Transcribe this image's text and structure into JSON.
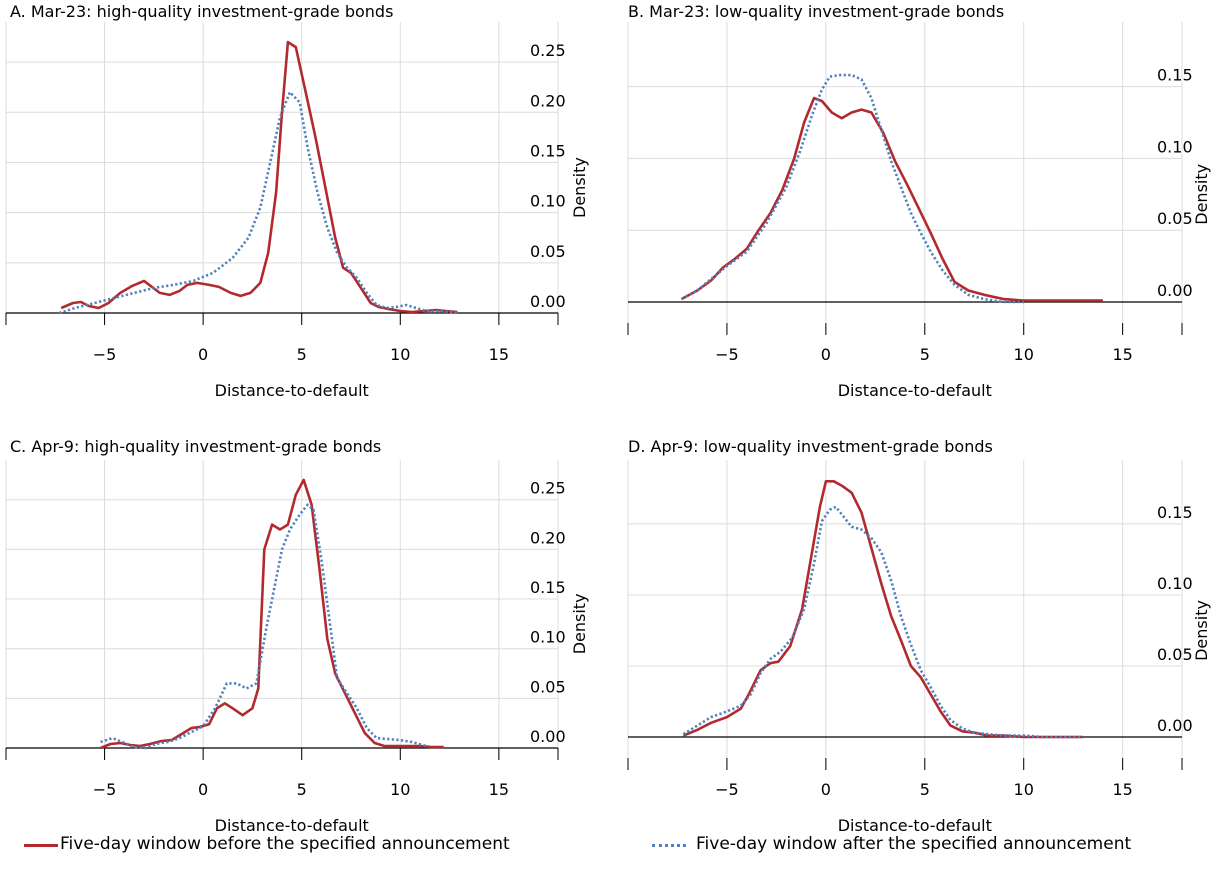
{
  "chart_data": [
    {
      "type": "line",
      "title": "A. Mar-23: high-quality investment-grade bonds",
      "xlabel": "Distance-to-default",
      "ylabel": "Density",
      "xlim": [
        -10,
        18
      ],
      "ylim": [
        -0.015,
        0.29
      ],
      "xticks": [
        -5,
        0,
        5,
        10,
        15
      ],
      "xtick_labels": [
        "−5",
        "0",
        "5",
        "10",
        "15"
      ],
      "yticks": [
        0,
        0.05,
        0.1,
        0.15,
        0.2,
        0.25
      ],
      "ytick_labels": [
        "0.00",
        "0.05",
        "0.10",
        "0.15",
        "0.20",
        "0.25"
      ],
      "grid": true,
      "series": [
        {
          "style": "solid",
          "color": "#b22a2e",
          "x": [
            -7.2,
            -6.6,
            -6.2,
            -5.8,
            -5.3,
            -4.8,
            -4.2,
            -3.6,
            -3.0,
            -2.6,
            -2.2,
            -1.7,
            -1.2,
            -0.8,
            -0.3,
            0.3,
            0.8,
            1.4,
            1.9,
            2.4,
            2.9,
            3.3,
            3.7,
            4.0,
            4.3,
            4.7,
            5.2,
            5.7,
            6.2,
            6.7,
            7.1,
            7.5,
            8.0,
            8.5,
            8.9,
            9.4,
            10.0,
            10.6,
            11.2,
            11.8,
            12.3,
            12.9
          ],
          "y": [
            0.005,
            0.01,
            0.011,
            0.007,
            0.005,
            0.01,
            0.02,
            0.027,
            0.032,
            0.026,
            0.02,
            0.018,
            0.022,
            0.028,
            0.03,
            0.028,
            0.026,
            0.02,
            0.017,
            0.02,
            0.03,
            0.06,
            0.12,
            0.2,
            0.27,
            0.265,
            0.22,
            0.175,
            0.125,
            0.075,
            0.045,
            0.04,
            0.025,
            0.01,
            0.006,
            0.004,
            0.002,
            0.001,
            0.002,
            0.003,
            0.002,
            0.001
          ]
        },
        {
          "style": "dotted",
          "color": "#4e81bd",
          "x": [
            -7.3,
            -6.5,
            -5.5,
            -4.5,
            -3.5,
            -2.5,
            -1.5,
            -0.5,
            0.5,
            1.5,
            2.3,
            2.9,
            3.4,
            3.9,
            4.4,
            4.9,
            5.3,
            5.8,
            6.3,
            6.8,
            7.3,
            7.8,
            8.3,
            8.8,
            9.3,
            9.8,
            10.3,
            10.8,
            11.3,
            11.9,
            12.5,
            13.0
          ],
          "y": [
            0.0,
            0.005,
            0.01,
            0.015,
            0.02,
            0.025,
            0.028,
            0.032,
            0.04,
            0.055,
            0.075,
            0.105,
            0.15,
            0.195,
            0.22,
            0.21,
            0.165,
            0.12,
            0.085,
            0.06,
            0.045,
            0.035,
            0.02,
            0.008,
            0.005,
            0.006,
            0.008,
            0.005,
            0.002,
            0.002,
            0.001,
            0.0
          ]
        }
      ]
    },
    {
      "type": "line",
      "title": "B. Mar-23: low-quality investment-grade bonds",
      "xlabel": "Distance-to-default",
      "ylabel": "Density",
      "xlim": [
        -10,
        18
      ],
      "ylim": [
        -0.015,
        0.195
      ],
      "xticks": [
        -5,
        0,
        5,
        10,
        15
      ],
      "xtick_labels": [
        "−5",
        "0",
        "5",
        "10",
        "15"
      ],
      "yticks": [
        0,
        0.05,
        0.1,
        0.15
      ],
      "ytick_labels": [
        "0.00",
        "0.05",
        "0.10",
        "0.15"
      ],
      "grid": true,
      "series": [
        {
          "style": "solid",
          "color": "#b22a2e",
          "x": [
            -7.3,
            -6.5,
            -5.8,
            -5.2,
            -4.6,
            -4.0,
            -3.4,
            -2.8,
            -2.2,
            -1.6,
            -1.1,
            -0.6,
            -0.2,
            0.3,
            0.8,
            1.3,
            1.8,
            2.3,
            2.9,
            3.5,
            4.1,
            4.7,
            5.3,
            5.9,
            6.5,
            7.2,
            8.0,
            9.0,
            10.0,
            11.0,
            12.0,
            13.0,
            14.0
          ],
          "y": [
            0.002,
            0.008,
            0.015,
            0.024,
            0.03,
            0.037,
            0.05,
            0.062,
            0.078,
            0.1,
            0.125,
            0.142,
            0.14,
            0.132,
            0.128,
            0.132,
            0.134,
            0.132,
            0.118,
            0.098,
            0.082,
            0.065,
            0.048,
            0.03,
            0.014,
            0.008,
            0.005,
            0.002,
            0.001,
            0.001,
            0.001,
            0.001,
            0.001
          ]
        },
        {
          "style": "dotted",
          "color": "#4e81bd",
          "x": [
            -7.3,
            -6.5,
            -5.8,
            -5.0,
            -4.0,
            -3.0,
            -2.0,
            -1.3,
            -0.7,
            -0.2,
            0.2,
            0.7,
            1.3,
            1.8,
            2.3,
            2.8,
            3.3,
            3.8,
            4.3,
            4.8,
            5.3,
            5.9,
            6.5,
            7.2,
            8.0,
            9.0,
            10.0
          ],
          "y": [
            0.002,
            0.008,
            0.016,
            0.025,
            0.035,
            0.055,
            0.08,
            0.105,
            0.13,
            0.148,
            0.157,
            0.158,
            0.158,
            0.155,
            0.142,
            0.12,
            0.098,
            0.08,
            0.062,
            0.048,
            0.035,
            0.022,
            0.012,
            0.005,
            0.002,
            0.0,
            0.0
          ]
        }
      ]
    },
    {
      "type": "line",
      "title": "C. Apr-9: high-quality investment-grade bonds",
      "xlabel": "Distance-to-default",
      "ylabel": "Density",
      "xlim": [
        -10,
        18
      ],
      "ylim": [
        -0.015,
        0.29
      ],
      "xticks": [
        -5,
        0,
        5,
        10,
        15
      ],
      "xtick_labels": [
        "−5",
        "0",
        "5",
        "10",
        "15"
      ],
      "yticks": [
        0,
        0.05,
        0.1,
        0.15,
        0.2,
        0.25
      ],
      "ytick_labels": [
        "0.00",
        "0.05",
        "0.10",
        "0.15",
        "0.20",
        "0.25"
      ],
      "grid": true,
      "series": [
        {
          "style": "solid",
          "color": "#b22a2e",
          "x": [
            -5.2,
            -4.7,
            -4.2,
            -3.7,
            -3.2,
            -2.7,
            -2.1,
            -1.6,
            -1.1,
            -0.6,
            -0.2,
            0.3,
            0.7,
            1.1,
            1.5,
            2.0,
            2.5,
            2.8,
            3.1,
            3.5,
            3.9,
            4.3,
            4.7,
            5.1,
            5.5,
            5.9,
            6.3,
            6.7,
            7.2,
            7.7,
            8.2,
            8.7,
            9.2,
            9.8,
            10.4,
            11.0,
            11.6,
            12.2
          ],
          "y": [
            0.0,
            0.004,
            0.005,
            0.003,
            0.002,
            0.004,
            0.007,
            0.008,
            0.014,
            0.02,
            0.021,
            0.024,
            0.04,
            0.045,
            0.04,
            0.033,
            0.04,
            0.06,
            0.2,
            0.225,
            0.22,
            0.225,
            0.255,
            0.27,
            0.245,
            0.18,
            0.11,
            0.075,
            0.055,
            0.035,
            0.015,
            0.005,
            0.002,
            0.002,
            0.002,
            0.002,
            0.001,
            0.001
          ]
        },
        {
          "style": "dotted",
          "color": "#4e81bd",
          "x": [
            -5.2,
            -4.6,
            -4.1,
            -3.5,
            -2.9,
            -2.4,
            -1.8,
            -1.2,
            -0.6,
            0.0,
            0.6,
            1.2,
            1.7,
            2.2,
            2.7,
            3.2,
            3.6,
            4.0,
            4.4,
            4.9,
            5.3,
            5.6,
            6.0,
            6.4,
            6.8,
            7.3,
            7.8,
            8.3,
            8.8,
            9.4,
            10.0,
            10.6,
            11.3
          ],
          "y": [
            0.006,
            0.01,
            0.006,
            0.001,
            0.0,
            0.004,
            0.006,
            0.01,
            0.016,
            0.022,
            0.04,
            0.065,
            0.065,
            0.06,
            0.065,
            0.12,
            0.16,
            0.2,
            0.22,
            0.235,
            0.245,
            0.24,
            0.19,
            0.13,
            0.07,
            0.055,
            0.04,
            0.02,
            0.01,
            0.009,
            0.008,
            0.006,
            0.002
          ]
        }
      ]
    },
    {
      "type": "line",
      "title": "D. Apr-9: low-quality investment-grade bonds",
      "xlabel": "Distance-to-default",
      "ylabel": "Density",
      "xlim": [
        -10,
        18
      ],
      "ylim": [
        -0.015,
        0.195
      ],
      "xticks": [
        -5,
        0,
        5,
        10,
        15
      ],
      "xtick_labels": [
        "−5",
        "0",
        "5",
        "10",
        "15"
      ],
      "yticks": [
        0,
        0.05,
        0.1,
        0.15
      ],
      "ytick_labels": [
        "0.00",
        "0.05",
        "0.10",
        "0.15"
      ],
      "grid": true,
      "series": [
        {
          "style": "solid",
          "color": "#b22a2e",
          "x": [
            -7.2,
            -6.5,
            -5.8,
            -5.0,
            -4.3,
            -3.9,
            -3.3,
            -2.8,
            -2.4,
            -1.8,
            -1.2,
            -0.7,
            -0.3,
            0.0,
            0.4,
            0.8,
            1.3,
            1.8,
            2.3,
            2.8,
            3.3,
            3.8,
            4.3,
            4.8,
            5.3,
            5.8,
            6.3,
            6.9,
            7.5,
            8.2,
            9.0,
            10.0,
            11.0,
            12.0,
            13.0
          ],
          "y": [
            0.001,
            0.005,
            0.01,
            0.014,
            0.02,
            0.03,
            0.047,
            0.052,
            0.053,
            0.064,
            0.09,
            0.13,
            0.162,
            0.18,
            0.18,
            0.177,
            0.172,
            0.158,
            0.133,
            0.108,
            0.085,
            0.068,
            0.05,
            0.042,
            0.03,
            0.018,
            0.008,
            0.004,
            0.003,
            0.001,
            0.001,
            0.0,
            0.0,
            0.0,
            0.0
          ]
        },
        {
          "style": "dotted",
          "color": "#4e81bd",
          "x": [
            -7.2,
            -6.5,
            -5.8,
            -5.0,
            -4.3,
            -3.8,
            -3.3,
            -2.8,
            -2.3,
            -1.7,
            -1.1,
            -0.6,
            -0.2,
            0.2,
            0.5,
            0.9,
            1.3,
            1.8,
            2.3,
            2.8,
            3.3,
            3.8,
            4.3,
            4.8,
            5.3,
            5.8,
            6.3,
            6.9,
            7.5,
            8.2,
            9.0,
            10.0,
            11.0,
            12.0,
            13.0
          ],
          "y": [
            0.002,
            0.008,
            0.014,
            0.018,
            0.022,
            0.03,
            0.045,
            0.055,
            0.06,
            0.07,
            0.09,
            0.122,
            0.152,
            0.16,
            0.162,
            0.155,
            0.148,
            0.146,
            0.14,
            0.13,
            0.11,
            0.085,
            0.065,
            0.047,
            0.035,
            0.022,
            0.012,
            0.006,
            0.003,
            0.002,
            0.001,
            0.001,
            0.0,
            0.0,
            0.0
          ]
        }
      ]
    }
  ],
  "legend": {
    "before_label": "Five-day window before the specified announcement",
    "after_label": "Five-day window after the specified announcement",
    "before_color": "#b22a2e",
    "after_color": "#4e81bd"
  }
}
